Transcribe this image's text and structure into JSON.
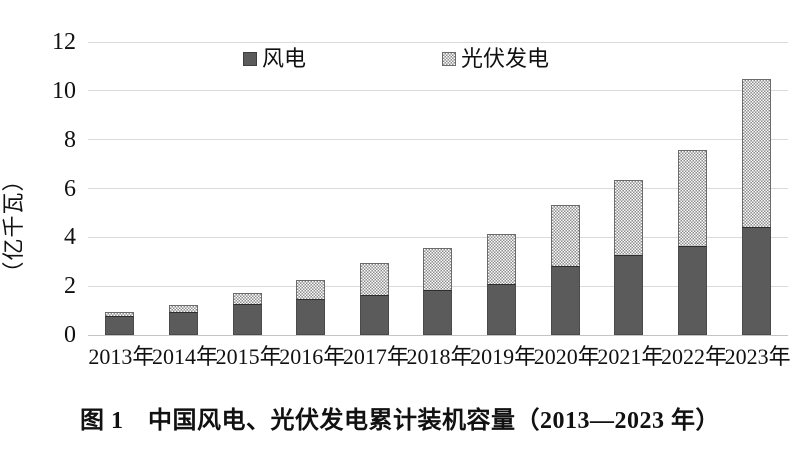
{
  "chart_data": {
    "type": "bar",
    "stacked": true,
    "title": "图 1　中国风电、光伏发电累计装机容量（2013—2023 年）",
    "ylabel": "（亿千瓦）",
    "xlabel": "",
    "categories": [
      "2013年",
      "2014年",
      "2015年",
      "2016年",
      "2017年",
      "2018年",
      "2019年",
      "2020年",
      "2021年",
      "2022年",
      "2023年"
    ],
    "series": [
      {
        "name": "风电",
        "swatch": "solid-dark-square-icon",
        "values": [
          0.77,
          0.96,
          1.29,
          1.49,
          1.64,
          1.84,
          2.1,
          2.81,
          3.28,
          3.65,
          4.41
        ]
      },
      {
        "name": "光伏发电",
        "swatch": "dotted-pattern-square-icon",
        "values": [
          0.19,
          0.28,
          0.43,
          0.77,
          1.3,
          1.74,
          2.04,
          2.53,
          3.06,
          3.93,
          6.09
        ]
      }
    ],
    "ylim": [
      0,
      12
    ],
    "yticks": [
      0,
      2,
      4,
      6,
      8,
      10,
      12
    ],
    "grid": true,
    "legend_position": "top-center"
  },
  "colors": {
    "wind_fill": "#5b5b5b",
    "solar_dot": "#8d8d8d",
    "solar_bg": "#fdfdfd",
    "gridline": "#dadada",
    "axis_baseline": "#c4c4c4",
    "text": "#111111"
  }
}
